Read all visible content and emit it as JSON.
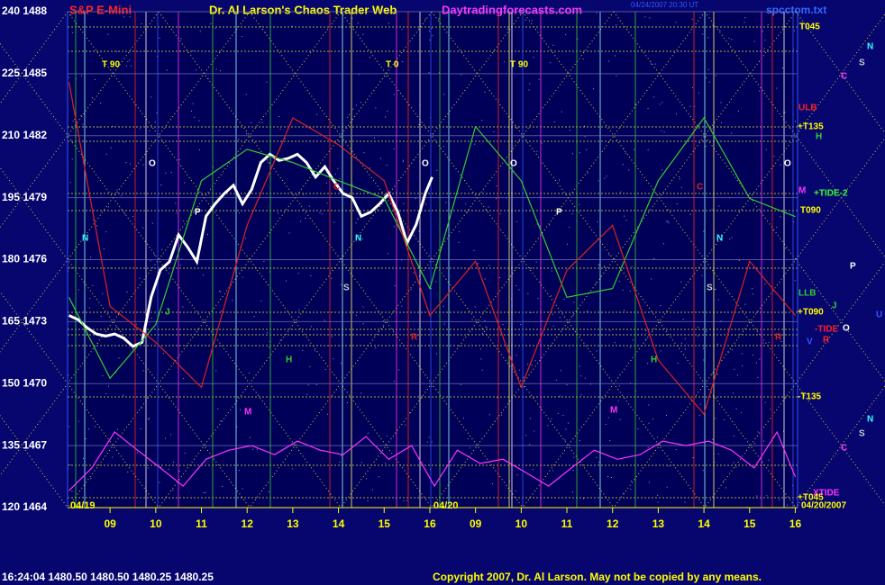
{
  "chart_data": {
    "type": "line",
    "title": "S&P E-Mini",
    "subtitle": "Dr. Al Larson's Chaos Trader Web",
    "site": "Daytradingforecasts.com",
    "file": "spcctom.txt",
    "timestamp": "04/24/2007 20:30 UT",
    "status": "16:24:04  1480.50 1480.50 1480.25 1480.25",
    "copyright": "Copyright 2007, Dr. Al Larson. May not be copied by any means.",
    "dates": [
      "04/19",
      "04/20"
    ],
    "xlim": [
      -0.93,
      15.05
    ],
    "xticks": [
      {
        "value": 0,
        "label": "09"
      },
      {
        "value": 1,
        "label": "10"
      },
      {
        "value": 2,
        "label": "11"
      },
      {
        "value": 3,
        "label": "12"
      },
      {
        "value": 4,
        "label": "13"
      },
      {
        "value": 5,
        "label": "14"
      },
      {
        "value": 6,
        "label": "15"
      },
      {
        "value": 7,
        "label": "16"
      },
      {
        "value": 8,
        "label": "09"
      },
      {
        "value": 9,
        "label": "10"
      },
      {
        "value": 10,
        "label": "11"
      },
      {
        "value": 11,
        "label": "12"
      },
      {
        "value": 12,
        "label": "13"
      },
      {
        "value": 13,
        "label": "14"
      },
      {
        "value": 14,
        "label": "15"
      },
      {
        "value": 15,
        "label": "16"
      }
    ],
    "ylim": [
      120,
      240
    ],
    "yticks": [
      {
        "value": 240,
        "label": "240 1488"
      },
      {
        "value": 225,
        "label": "225 1485"
      },
      {
        "value": 210,
        "label": "210 1482"
      },
      {
        "value": 195,
        "label": "195 1479"
      },
      {
        "value": 180,
        "label": "180 1476"
      },
      {
        "value": 165,
        "label": "165 1473"
      },
      {
        "value": 150,
        "label": "150 1470"
      },
      {
        "value": 135,
        "label": "135 1467"
      },
      {
        "value": 120,
        "label": "120 1464"
      }
    ],
    "y2lim": [
      1464,
      1488
    ],
    "grid": true,
    "series": [
      {
        "color": "#ffffff",
        "axis": "y2",
        "x": [
          -0.9,
          -0.7,
          -0.5,
          -0.3,
          -0.1,
          0.1,
          0.3,
          0.5,
          0.7,
          0.9,
          1.1,
          1.3,
          1.5,
          1.7,
          1.9,
          2.1,
          2.3,
          2.5,
          2.7,
          2.9,
          3.1,
          3.3,
          3.5,
          3.7,
          3.9,
          4.1,
          4.3,
          4.5,
          4.7,
          4.9,
          5.1,
          5.3,
          5.5,
          5.7,
          5.9,
          6.1,
          6.3,
          6.5,
          6.7,
          6.9,
          7.05
        ],
        "values": [
          1473.3,
          1473.1,
          1472.7,
          1472.4,
          1472.3,
          1472.4,
          1472.2,
          1471.8,
          1472.0,
          1474.2,
          1475.5,
          1475.9,
          1477.2,
          1476.6,
          1475.9,
          1478.1,
          1478.7,
          1479.2,
          1479.6,
          1478.7,
          1479.4,
          1480.7,
          1481.1,
          1480.8,
          1480.9,
          1481.1,
          1480.7,
          1480.0,
          1480.5,
          1479.8,
          1479.2,
          1479.0,
          1478.1,
          1478.3,
          1478.7,
          1479.2,
          1478.3,
          1476.8,
          1477.7,
          1479.2,
          1480.0
        ]
      },
      {
        "color": "#ff33ff",
        "x": [
          -0.9,
          -0.4,
          0.1,
          0.6,
          1.1,
          1.6,
          2.1,
          2.6,
          3.1,
          3.6,
          4.1,
          4.6,
          5.1,
          5.6,
          6.1,
          6.6,
          7.1,
          7.6,
          8.1,
          8.6,
          9.1,
          9.6,
          10.1,
          10.6,
          11.1,
          11.6,
          12.1,
          12.6,
          13.1,
          13.6,
          14.1,
          14.6,
          15.0
        ],
        "values": [
          124.1,
          129.6,
          138.3,
          133.9,
          129.6,
          125.2,
          131.7,
          133.9,
          135.0,
          132.8,
          136.1,
          133.9,
          132.8,
          137.2,
          131.7,
          135.0,
          125.2,
          133.9,
          130.7,
          131.7,
          128.5,
          125.2,
          129.6,
          133.9,
          131.7,
          132.8,
          136.1,
          135.0,
          136.1,
          133.9,
          129.6,
          138.3,
          127.4
        ]
      },
      {
        "color": "#33cc33",
        "x": [
          -0.9,
          0,
          1,
          2,
          3,
          4,
          5,
          6,
          7,
          8,
          9,
          10,
          11,
          12,
          13,
          14,
          15
        ],
        "values": [
          170.9,
          151.3,
          164.3,
          199.1,
          206.7,
          203.5,
          199.1,
          194.8,
          173.0,
          212.2,
          199.1,
          170.9,
          173.0,
          199.1,
          214.3,
          194.8,
          190.4
        ]
      },
      {
        "color": "#dd2222",
        "x": [
          -0.9,
          0,
          1,
          2,
          3,
          4,
          5,
          6,
          7,
          8,
          9,
          10,
          11,
          12,
          13,
          14,
          15
        ],
        "values": [
          223.0,
          168.7,
          160.0,
          149.1,
          188.3,
          214.3,
          207.8,
          199.1,
          166.5,
          179.6,
          149.1,
          177.4,
          188.3,
          155.7,
          142.6,
          179.6,
          166.5
        ]
      }
    ],
    "annotations": [
      {
        "text": "T 90",
        "color": "#ffff00"
      },
      {
        "text": "T 0",
        "color": "#ffff00"
      },
      {
        "text": "T 90",
        "color": "#ffff00"
      },
      {
        "text": "O",
        "color": "#ffffff"
      },
      {
        "text": "O",
        "color": "#ffffff"
      },
      {
        "text": "O",
        "color": "#ffffff"
      },
      {
        "text": "O",
        "color": "#ffffff"
      },
      {
        "text": "N",
        "color": "#33ffff"
      },
      {
        "text": "N",
        "color": "#33ffff"
      },
      {
        "text": "N",
        "color": "#33ffff"
      },
      {
        "text": "P",
        "color": "#ffffff"
      },
      {
        "text": "P",
        "color": "#ffffff"
      },
      {
        "text": "S",
        "color": "#cccccc"
      },
      {
        "text": "S",
        "color": "#cccccc"
      },
      {
        "text": "J",
        "color": "#33cc33"
      },
      {
        "text": "M",
        "color": "#ff33ff"
      },
      {
        "text": "M",
        "color": "#ff33ff"
      },
      {
        "text": "H",
        "color": "#33cc33"
      },
      {
        "text": "H",
        "color": "#33cc33"
      },
      {
        "text": "C",
        "color": "#dd2222"
      },
      {
        "text": "C",
        "color": "#dd2222"
      },
      {
        "text": "R",
        "color": "#dd2222"
      },
      {
        "text": "R",
        "color": "#dd2222"
      },
      {
        "text": "N",
        "color": "#33ffff"
      },
      {
        "text": "S",
        "color": "#cccccc"
      },
      {
        "text": "C",
        "color": "#ff33ff"
      },
      {
        "text": "P",
        "color": "#ffffff"
      },
      {
        "text": "U",
        "color": "#3355ff"
      },
      {
        "text": "N",
        "color": "#33ffff"
      },
      {
        "text": "S",
        "color": "#cccccc"
      },
      {
        "text": "C",
        "color": "#ff33ff"
      },
      {
        "text": "V",
        "color": "#3355ff"
      },
      {
        "text": "T045",
        "color": "#ffff00"
      },
      {
        "text": "ULB",
        "color": "#ff2222"
      },
      {
        "text": "+T135",
        "color": "#ffff00"
      },
      {
        "text": "H",
        "color": "#33cc33"
      },
      {
        "text": "M",
        "color": "#ff33ff"
      },
      {
        "text": "+TIDE-2",
        "color": "#33ff33"
      },
      {
        "text": "T090",
        "color": "#ffff00"
      },
      {
        "text": "LLB",
        "color": "#33cc33"
      },
      {
        "text": "J",
        "color": "#33cc33"
      },
      {
        "text": "+T090",
        "color": "#ffff00"
      },
      {
        "text": "-TIDE",
        "color": "#ff2222"
      },
      {
        "text": "O",
        "color": "#ffffff"
      },
      {
        "text": "R",
        "color": "#ff2222"
      },
      {
        "text": "-T135",
        "color": "#ffff00"
      },
      {
        "text": "XTIDE",
        "color": "#ff33ff"
      },
      {
        "text": "+T045",
        "color": "#ffff00"
      },
      {
        "text": "04/20/2007",
        "color": "#ffff00"
      }
    ]
  }
}
